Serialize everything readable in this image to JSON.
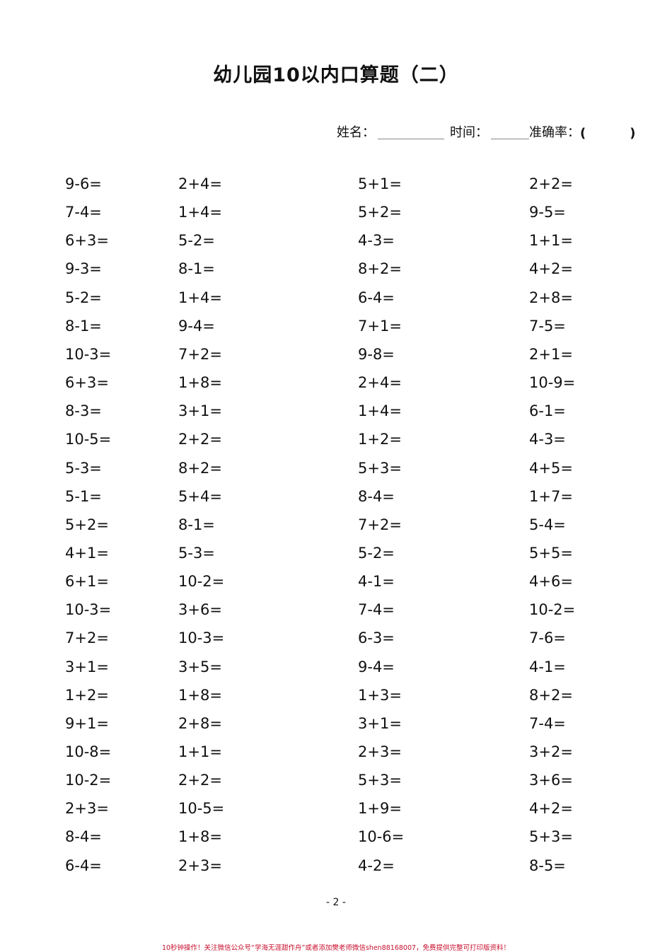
{
  "title": "幼儿园10以内口算题（二）",
  "info": {
    "name_label": "姓名：",
    "time_label": "时间：",
    "accuracy_label": "准确率：",
    "paren_open": "(",
    "paren_close": ")"
  },
  "problems": [
    [
      "9-6=",
      "2+4=",
      "5+1=",
      "2+2="
    ],
    [
      "7-4=",
      "1+4=",
      "5+2=",
      "9-5="
    ],
    [
      "6+3=",
      "5-2=",
      "4-3=",
      "1+1="
    ],
    [
      "9-3=",
      "8-1=",
      "8+2=",
      "4+2="
    ],
    [
      "5-2=",
      "1+4=",
      "6-4=",
      "2+8="
    ],
    [
      "8-1=",
      "9-4=",
      "7+1=",
      "7-5="
    ],
    [
      "10-3=",
      "7+2=",
      "9-8=",
      "2+1="
    ],
    [
      "6+3=",
      "1+8=",
      "2+4=",
      "10-9="
    ],
    [
      "8-3=",
      "3+1=",
      "1+4=",
      "6-1="
    ],
    [
      "10-5=",
      "2+2=",
      "1+2=",
      "4-3="
    ],
    [
      "5-3=",
      "8+2=",
      "5+3=",
      "4+5="
    ],
    [
      "5-1=",
      "5+4=",
      "8-4=",
      "1+7="
    ],
    [
      "5+2=",
      "8-1=",
      "7+2=",
      "5-4="
    ],
    [
      "4+1=",
      "5-3=",
      "5-2=",
      "5+5="
    ],
    [
      "6+1=",
      "10-2=",
      "4-1=",
      "4+6="
    ],
    [
      "10-3=",
      "3+6=",
      "7-4=",
      "10-2="
    ],
    [
      "7+2=",
      "10-3=",
      "6-3=",
      "7-6="
    ],
    [
      "3+1=",
      "3+5=",
      "9-4=",
      "4-1="
    ],
    [
      "1+2=",
      "1+8=",
      "1+3=",
      "8+2="
    ],
    [
      "9+1=",
      "2+8=",
      "3+1=",
      "7-4="
    ],
    [
      "10-8=",
      "1+1=",
      "2+3=",
      "3+2="
    ],
    [
      "10-2=",
      "2+2=",
      "5+3=",
      "3+6="
    ],
    [
      "2+3=",
      "10-5=",
      "1+9=",
      "4+2="
    ],
    [
      "8-4=",
      "1+8=",
      "10-6=",
      "5+3="
    ],
    [
      "6-4=",
      "2+3=",
      "4-2=",
      "8-5="
    ]
  ],
  "page_number": "- 2 -",
  "footer": "10秒钟操作！关注微信公众号“学海无涯甜作舟”或者添加樊老师微信shen88168007，免费提供完整可打印版资料！",
  "colors": {
    "footer": "#c8102e"
  }
}
